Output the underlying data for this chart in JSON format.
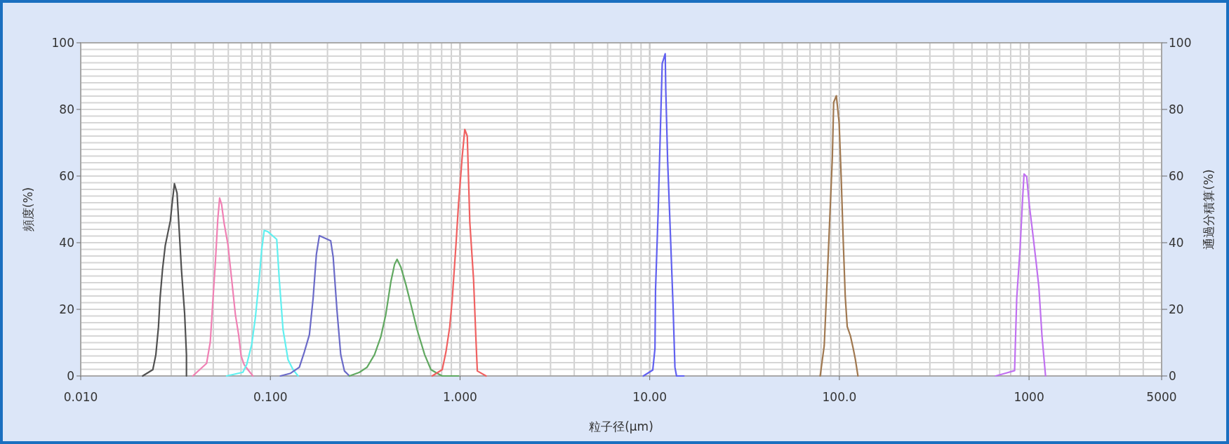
{
  "chart_data": {
    "type": "line",
    "xlabel": "粒子径(μm)",
    "ylabel": "頻度(%)",
    "y2label": "通過分積算(%)",
    "log": "x",
    "grid": true,
    "xlim": [
      0.01,
      5000
    ],
    "xticks": [
      {
        "value": 0.01,
        "label": "0.010"
      },
      {
        "value": 0.1,
        "label": "0.100"
      },
      {
        "value": 1,
        "label": "1.000"
      },
      {
        "value": 10,
        "label": "10.00"
      },
      {
        "value": 100,
        "label": "100.0"
      },
      1000,
      5000
    ],
    "ylim": [
      0,
      100
    ],
    "yticks": [
      0,
      20,
      40,
      60,
      80,
      100
    ],
    "y2lim": [
      0,
      100
    ],
    "y2ticks": [
      0,
      20,
      40,
      60,
      80,
      100
    ],
    "series": [
      {
        "color": "#505050",
        "x": [
          0.0212,
          0.024,
          0.0249,
          0.0257,
          0.0262,
          0.027,
          0.0279,
          0.0287,
          0.0297,
          0.0303,
          0.0312,
          0.0322,
          0.033,
          0.034,
          0.0353,
          0.0361,
          0.0361
        ],
        "values": [
          0,
          1.9,
          6.4,
          14.7,
          23.3,
          32.0,
          39.1,
          42.5,
          46.6,
          51.5,
          57.7,
          54.9,
          44.4,
          31.6,
          18.8,
          6.4,
          0
        ]
      },
      {
        "color": "#f080b4",
        "x": [
          0.039,
          0.0461,
          0.0482,
          0.0497,
          0.0513,
          0.0528,
          0.054,
          0.0553,
          0.057,
          0.0597,
          0.0625,
          0.0654,
          0.068,
          0.0701,
          0.0727,
          0.0761,
          0.0809
        ],
        "values": [
          0,
          3.8,
          10.2,
          22.2,
          34.2,
          47.0,
          53.4,
          51.5,
          45.9,
          39.5,
          29.0,
          18.4,
          12.4,
          6.0,
          3.4,
          1.9,
          0
        ]
      },
      {
        "color": "#60f0f0",
        "x": [
          0.0588,
          0.0716,
          0.075,
          0.0797,
          0.0834,
          0.0873,
          0.09,
          0.0928,
          0.0971,
          0.108,
          0.1114,
          0.1166,
          0.1239,
          0.1317,
          0.14
        ],
        "values": [
          0,
          1.1,
          3.4,
          9.4,
          17.7,
          29.0,
          38.0,
          43.7,
          43.3,
          41.0,
          29.0,
          13.9,
          4.9,
          1.9,
          0
        ]
      },
      {
        "color": "#6a6ac8",
        "x": [
          0.113,
          0.1277,
          0.1421,
          0.151,
          0.1606,
          0.168,
          0.1748,
          0.1813,
          0.1927,
          0.2079,
          0.2143,
          0.2243,
          0.2349,
          0.2457,
          0.2612
        ],
        "values": [
          0,
          0.8,
          2.6,
          7.2,
          12.4,
          23.3,
          36.5,
          42.1,
          41.4,
          40.6,
          35.7,
          19.9,
          6.4,
          1.5,
          0
        ]
      },
      {
        "color": "#60a860",
        "x": [
          0.2612,
          0.295,
          0.3232,
          0.354,
          0.382,
          0.4059,
          0.4315,
          0.4516,
          0.4656,
          0.4873,
          0.5178,
          0.5504,
          0.5937,
          0.6507,
          0.7022,
          0.7576,
          0.8053,
          0.9813
        ],
        "values": [
          0,
          1.1,
          2.6,
          6.4,
          11.7,
          18.4,
          28.2,
          33.5,
          35.0,
          32.7,
          27.5,
          21.5,
          13.9,
          6.4,
          1.9,
          0.8,
          0,
          0
        ]
      },
      {
        "color": "#f06060",
        "x": [
          0.7131,
          0.8053,
          0.8427,
          0.8822,
          0.9095,
          0.952,
          0.9813,
          1.0272,
          1.059,
          1.0917,
          1.1255,
          1.1781,
          1.2145,
          1.2332,
          1.3718
        ],
        "values": [
          0,
          1.9,
          7.2,
          14.7,
          23.0,
          39.5,
          51.5,
          66,
          74,
          72,
          46.3,
          29.0,
          10.2,
          1.5,
          0
        ]
      },
      {
        "color": "#6060f0",
        "x": [
          9.26,
          10.38,
          10.66,
          10.73,
          11.09,
          11.38,
          11.64,
          12.07,
          12.15,
          12.43,
          12.85,
          13.27,
          13.58,
          13.85,
          15.14
        ],
        "values": [
          0,
          1.8,
          8.3,
          25.7,
          50.1,
          73.6,
          93.8,
          96.7,
          86.1,
          64.6,
          42.8,
          21.3,
          2.6,
          0,
          0
        ]
      },
      {
        "color": "#a07850",
        "x": [
          79.2,
          83.2,
          86.0,
          88.8,
          91.8,
          93.3,
          96.4,
          99.7,
          102.3,
          104.7,
          107.4,
          110.0,
          114.4,
          118.2,
          121.3,
          125.3
        ],
        "values": [
          0,
          9.1,
          27.4,
          46.0,
          65.5,
          82.1,
          84.1,
          76.0,
          59.0,
          41.1,
          23.7,
          14.8,
          12.0,
          8.3,
          5.1,
          0
        ]
      },
      {
        "color": "#c070f0",
        "x": [
          667,
          748,
          839,
          861,
          896,
          925,
          941,
          972,
          1005,
          1038,
          1091,
          1127,
          1170,
          1222
        ],
        "values": [
          0,
          0.8,
          1.6,
          23.3,
          37.9,
          53.3,
          60.6,
          59.8,
          50.9,
          44.4,
          33.9,
          26.6,
          12,
          0
        ]
      }
    ]
  }
}
